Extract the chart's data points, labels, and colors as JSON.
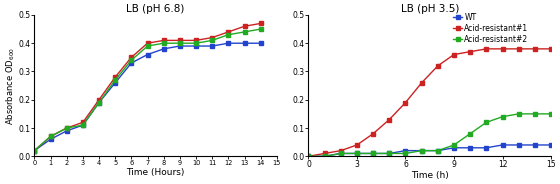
{
  "title_left": "LB (pH 6.8)",
  "title_right": "LB (pH 3.5)",
  "ylabel_left": "Absorbance OD$_{600}$",
  "xlabel_left": "Time (Hours)",
  "xlabel_right": "Time (h)",
  "ylim": [
    0.0,
    0.5
  ],
  "yticks": [
    0.0,
    0.1,
    0.2,
    0.3,
    0.4,
    0.5
  ],
  "xticks_left": [
    0,
    1,
    2,
    3,
    4,
    5,
    6,
    7,
    8,
    9,
    10,
    11,
    12,
    13,
    14,
    15
  ],
  "xticks_right": [
    0,
    3,
    6,
    9,
    12,
    15
  ],
  "legend_labels": [
    "WT",
    "Acid-resistant#1",
    "Acid-resistant#2"
  ],
  "colors": [
    "#2244cc",
    "#cc2222",
    "#22aa22"
  ],
  "marker": "s",
  "markersize": 2.5,
  "linewidth": 1.0,
  "left_x": [
    0,
    1,
    2,
    3,
    4,
    5,
    6,
    7,
    8,
    9,
    10,
    11,
    12,
    13,
    14
  ],
  "left_wt": [
    0.02,
    0.06,
    0.09,
    0.11,
    0.19,
    0.26,
    0.33,
    0.36,
    0.38,
    0.39,
    0.39,
    0.39,
    0.4,
    0.4,
    0.4
  ],
  "left_ar1": [
    0.02,
    0.07,
    0.1,
    0.12,
    0.2,
    0.28,
    0.35,
    0.4,
    0.41,
    0.41,
    0.41,
    0.42,
    0.44,
    0.46,
    0.47
  ],
  "left_ar2": [
    0.02,
    0.07,
    0.1,
    0.11,
    0.19,
    0.27,
    0.34,
    0.39,
    0.4,
    0.4,
    0.4,
    0.41,
    0.43,
    0.44,
    0.45
  ],
  "right_x": [
    0,
    1,
    2,
    3,
    4,
    5,
    6,
    7,
    8,
    9,
    10,
    11,
    12,
    13,
    14,
    15
  ],
  "right_wt": [
    0.0,
    0.0,
    0.01,
    0.01,
    0.01,
    0.01,
    0.02,
    0.02,
    0.02,
    0.03,
    0.03,
    0.03,
    0.04,
    0.04,
    0.04,
    0.04
  ],
  "right_ar1": [
    0.0,
    0.01,
    0.02,
    0.04,
    0.08,
    0.13,
    0.19,
    0.26,
    0.32,
    0.36,
    0.37,
    0.38,
    0.38,
    0.38,
    0.38,
    0.38
  ],
  "right_ar2": [
    0.0,
    0.0,
    0.01,
    0.01,
    0.01,
    0.01,
    0.01,
    0.02,
    0.02,
    0.04,
    0.08,
    0.12,
    0.14,
    0.15,
    0.15,
    0.15
  ]
}
